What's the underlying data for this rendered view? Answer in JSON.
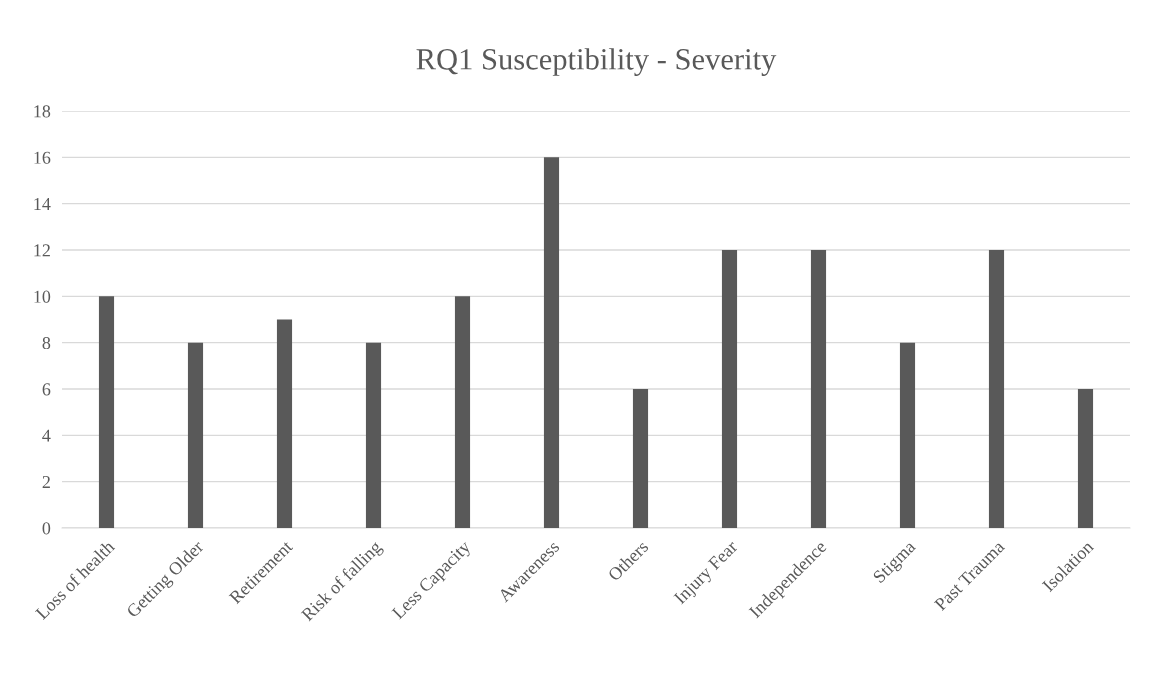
{
  "chart_data": {
    "type": "bar",
    "title": "RQ1 Susceptibility - Severity",
    "categories": [
      "Loss of health",
      "Getting Older",
      "Retirement",
      "Risk of falling",
      "Less Capacity",
      "Awareness",
      "Others",
      "Injury Fear",
      "Independence",
      "Stigma",
      "Past Trauma",
      "Isolation"
    ],
    "values": [
      10,
      8,
      9,
      8,
      10,
      16,
      6,
      12,
      12,
      8,
      12,
      6
    ],
    "color": "#595959",
    "ylim": [
      0,
      18
    ],
    "yticks": [
      0,
      2,
      4,
      6,
      8,
      10,
      12,
      14,
      16,
      18
    ],
    "grid": "y",
    "legend": false
  }
}
